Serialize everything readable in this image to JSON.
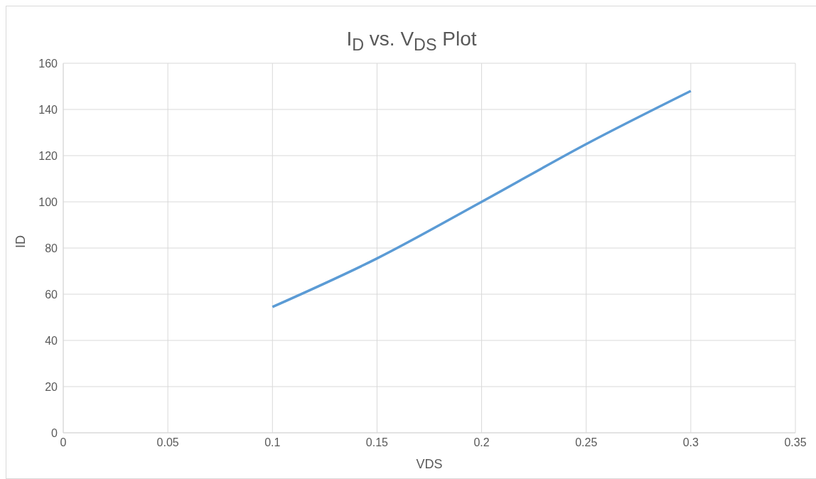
{
  "chart_data": {
    "type": "line",
    "title": "I$_{D}$ vs. V$_{DS}$ Plot",
    "xlabel": "VDS",
    "ylabel": "ID",
    "x": [
      0.1,
      0.15,
      0.2,
      0.25,
      0.3
    ],
    "series": [
      {
        "color": "#5b9bd5",
        "values": [
          54.5,
          75.5,
          100,
          125,
          148
        ]
      }
    ],
    "xlim": [
      0,
      0.35
    ],
    "xticks": [
      0,
      0.05,
      0.1,
      0.15,
      0.2,
      0.25,
      0.3,
      0.35
    ],
    "ylim": [
      0,
      160
    ],
    "yticks": [
      0,
      20,
      40,
      60,
      80,
      100,
      120,
      140,
      160
    ],
    "grid": true,
    "marker": "none",
    "line_style": "solid",
    "legend": false
  }
}
